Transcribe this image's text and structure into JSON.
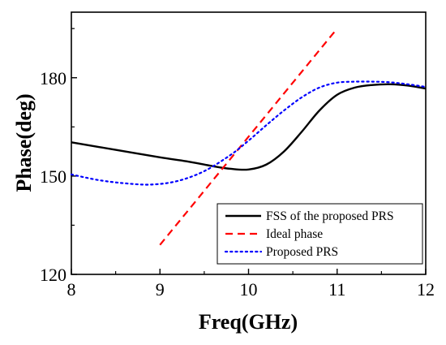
{
  "chart_data": {
    "type": "line",
    "title": "",
    "xlabel": "Freq(GHz)",
    "ylabel": "Phase(deg)",
    "xlim": [
      8,
      12
    ],
    "ylim": [
      120,
      200
    ],
    "xticks": [
      8,
      9,
      10,
      11,
      12
    ],
    "yticks": [
      120,
      150,
      180
    ],
    "grid": false,
    "legend_position": "bottom-right",
    "series": [
      {
        "name": "FSS of the proposed PRS",
        "style": "solid",
        "color": "#000000",
        "x": [
          8.0,
          8.5,
          9.0,
          9.3,
          9.6,
          9.8,
          10.0,
          10.2,
          10.4,
          10.6,
          10.8,
          11.0,
          11.2,
          11.4,
          11.6,
          11.8,
          12.0
        ],
        "y": [
          160.3,
          158.0,
          155.7,
          154.5,
          153.0,
          152.2,
          152.0,
          153.5,
          157.5,
          163.5,
          170.0,
          174.8,
          177.0,
          177.8,
          178.0,
          177.6,
          176.7
        ]
      },
      {
        "name": "Ideal phase",
        "style": "dashed",
        "color": "#ff0000",
        "x": [
          9.0,
          11.0
        ],
        "y": [
          129.0,
          195.0
        ]
      },
      {
        "name": "Proposed PRS",
        "style": "dotted",
        "color": "#0000ff",
        "x": [
          8.0,
          8.3,
          8.6,
          8.9,
          9.2,
          9.5,
          9.8,
          10.0,
          10.2,
          10.4,
          10.6,
          10.8,
          11.0,
          11.2,
          11.4,
          11.6,
          11.8,
          12.0
        ],
        "y": [
          150.5,
          148.8,
          147.8,
          147.4,
          148.5,
          151.5,
          156.5,
          160.8,
          165.5,
          170.0,
          174.0,
          177.0,
          178.5,
          178.8,
          178.8,
          178.6,
          178.0,
          177.2
        ]
      }
    ]
  }
}
